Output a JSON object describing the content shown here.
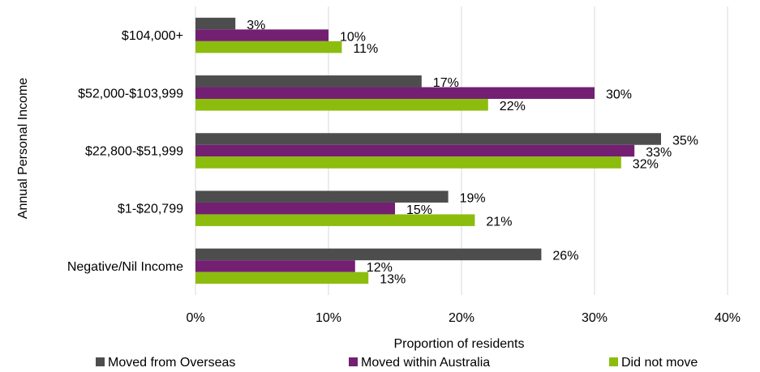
{
  "chart_data": {
    "type": "bar",
    "orientation": "horizontal",
    "title": "",
    "xlabel": "Proportion of residents",
    "ylabel": "Annual Personal Income",
    "xlim": [
      0,
      40
    ],
    "x_ticks": [
      "0%",
      "10%",
      "20%",
      "30%",
      "40%"
    ],
    "x_tick_values": [
      0,
      10,
      20,
      30,
      40
    ],
    "grid": true,
    "legend_position": "bottom",
    "categories": [
      "$104,000+",
      "$52,000-$103,999",
      "$22,800-$51,999",
      "$1-$20,799",
      "Negative/Nil Income"
    ],
    "series": [
      {
        "name": "Moved from Overseas",
        "color": "#4d4d4d",
        "values": [
          3,
          17,
          35,
          19,
          26
        ],
        "labels": [
          "3%",
          "17%",
          "35%",
          "19%",
          "26%"
        ]
      },
      {
        "name": "Moved within Australia",
        "color": "#732073",
        "values": [
          10,
          30,
          33,
          15,
          12
        ],
        "labels": [
          "10%",
          "30%",
          "33%",
          "15%",
          "12%"
        ]
      },
      {
        "name": "Did not move",
        "color": "#8cbd0e",
        "values": [
          11,
          22,
          32,
          21,
          13
        ],
        "labels": [
          "11%",
          "22%",
          "32%",
          "21%",
          "13%"
        ]
      }
    ]
  }
}
